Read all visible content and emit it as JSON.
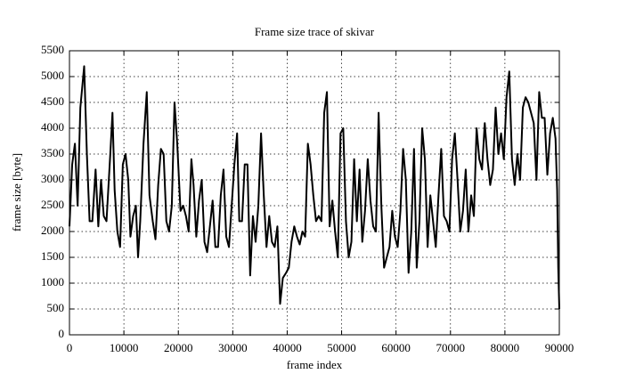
{
  "chart_data": {
    "type": "line",
    "title": "Frame size trace of skivar",
    "xlabel": "frame index",
    "ylabel": "frame size [byte]",
    "color": "#000000",
    "grid": true,
    "xlim": [
      0,
      90000
    ],
    "ylim": [
      0,
      5500
    ],
    "xticks": [
      0,
      10000,
      20000,
      30000,
      40000,
      50000,
      60000,
      70000,
      80000,
      90000
    ],
    "yticks": [
      0,
      500,
      1000,
      1500,
      2000,
      2500,
      3000,
      3500,
      4000,
      4500,
      5000,
      5500
    ],
    "x": [
      0,
      500,
      1000,
      1500,
      2000,
      2700,
      3200,
      3700,
      4200,
      4800,
      5300,
      5800,
      6300,
      6800,
      7500,
      7900,
      8300,
      8800,
      9300,
      9800,
      10300,
      10800,
      11200,
      11700,
      12200,
      12600,
      13000,
      13600,
      14200,
      14700,
      15300,
      15800,
      16300,
      16800,
      17300,
      17800,
      18300,
      18800,
      19300,
      19800,
      20400,
      20900,
      21400,
      21900,
      22400,
      22800,
      23300,
      23800,
      24300,
      24800,
      25300,
      25800,
      26300,
      26800,
      27300,
      27800,
      28300,
      28800,
      29300,
      29800,
      30300,
      30800,
      31200,
      31700,
      32200,
      32700,
      33200,
      33700,
      34200,
      34700,
      35200,
      35700,
      36200,
      36700,
      37200,
      37700,
      38200,
      38700,
      39200,
      39800,
      40300,
      40800,
      41300,
      41800,
      42300,
      42800,
      43300,
      43800,
      44300,
      44800,
      45300,
      45800,
      46300,
      46800,
      47300,
      47800,
      48300,
      48800,
      49300,
      49800,
      50300,
      50800,
      51300,
      51800,
      52300,
      52800,
      53300,
      53800,
      54300,
      54800,
      55300,
      55800,
      56300,
      56800,
      57300,
      57800,
      58300,
      58800,
      59300,
      59800,
      60300,
      60800,
      61300,
      61800,
      62300,
      62800,
      63300,
      63800,
      64300,
      64800,
      65300,
      65800,
      66300,
      66800,
      67300,
      67800,
      68300,
      68800,
      69300,
      69800,
      70300,
      70800,
      71300,
      71800,
      72300,
      72800,
      73300,
      73800,
      74300,
      74800,
      75300,
      75800,
      76300,
      76800,
      77300,
      77800,
      78300,
      78800,
      79300,
      79800,
      80300,
      80800,
      81300,
      81800,
      82300,
      82800,
      83300,
      83800,
      84300,
      84800,
      85300,
      85800,
      86300,
      86800,
      87300,
      87800,
      88300,
      88800,
      89300,
      89600,
      89800,
      90000
    ],
    "values": [
      2100,
      3300,
      3700,
      2500,
      4400,
      5200,
      3500,
      2200,
      2200,
      3200,
      2100,
      3000,
      2300,
      2200,
      3500,
      4300,
      2800,
      2000,
      1700,
      3300,
      3500,
      3000,
      1900,
      2300,
      2500,
      1500,
      2200,
      3700,
      4700,
      2700,
      2200,
      1850,
      2900,
      3600,
      3500,
      2200,
      2000,
      2500,
      4500,
      3700,
      2400,
      2500,
      2300,
      2000,
      3400,
      2900,
      1900,
      2600,
      3000,
      1800,
      1600,
      2100,
      2600,
      1700,
      1700,
      2700,
      3200,
      1900,
      1700,
      2500,
      3300,
      3900,
      2200,
      2200,
      3300,
      3300,
      1150,
      2300,
      1800,
      2500,
      3900,
      2700,
      1700,
      2300,
      1800,
      1700,
      2100,
      600,
      1100,
      1200,
      1300,
      1800,
      2100,
      1900,
      1750,
      2000,
      1900,
      3700,
      3300,
      2700,
      2200,
      2300,
      2200,
      4300,
      4700,
      2100,
      2600,
      2000,
      1500,
      3900,
      4000,
      2200,
      1500,
      1800,
      3400,
      2200,
      3200,
      1800,
      2400,
      3400,
      2600,
      2100,
      2000,
      4300,
      2500,
      1300,
      1500,
      1700,
      2400,
      1900,
      1700,
      2400,
      3600,
      3000,
      1200,
      2000,
      3600,
      1300,
      2200,
      4000,
      3400,
      1700,
      2700,
      2200,
      1700,
      2700,
      3600,
      2300,
      2200,
      2000,
      3400,
      3900,
      3000,
      2000,
      2400,
      3200,
      2000,
      2700,
      2300,
      4000,
      3400,
      3200,
      4100,
      3400,
      2900,
      3200,
      4400,
      3500,
      3900,
      3400,
      4600,
      5100,
      3400,
      2900,
      3500,
      3000,
      4400,
      4600,
      4500,
      4300,
      4100,
      3000,
      4700,
      4200,
      4200,
      3100,
      3900,
      4200,
      3800,
      2800,
      1300,
      500
    ]
  }
}
